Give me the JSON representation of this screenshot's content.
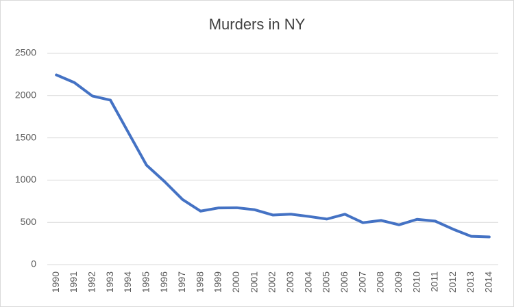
{
  "chart_data": {
    "type": "line",
    "title": "Murders in NY",
    "categories": [
      "1990",
      "1991",
      "1992",
      "1993",
      "1994",
      "1995",
      "1996",
      "1997",
      "1998",
      "1999",
      "2000",
      "2001",
      "2002",
      "2003",
      "2004",
      "2005",
      "2006",
      "2007",
      "2008",
      "2009",
      "2010",
      "2011",
      "2012",
      "2013",
      "2014"
    ],
    "series": [
      {
        "color": "#4472c4",
        "values": [
          2245,
          2154,
          1995,
          1946,
          1561,
          1177,
          983,
          770,
          633,
          671,
          673,
          649,
          587,
          597,
          570,
          539,
          596,
          496,
          523,
          471,
          536,
          515,
          419,
          335,
          328
        ]
      }
    ],
    "ylim": [
      0,
      2500
    ],
    "yticks": [
      0,
      500,
      1000,
      1500,
      2000,
      2500
    ],
    "grid": true
  }
}
